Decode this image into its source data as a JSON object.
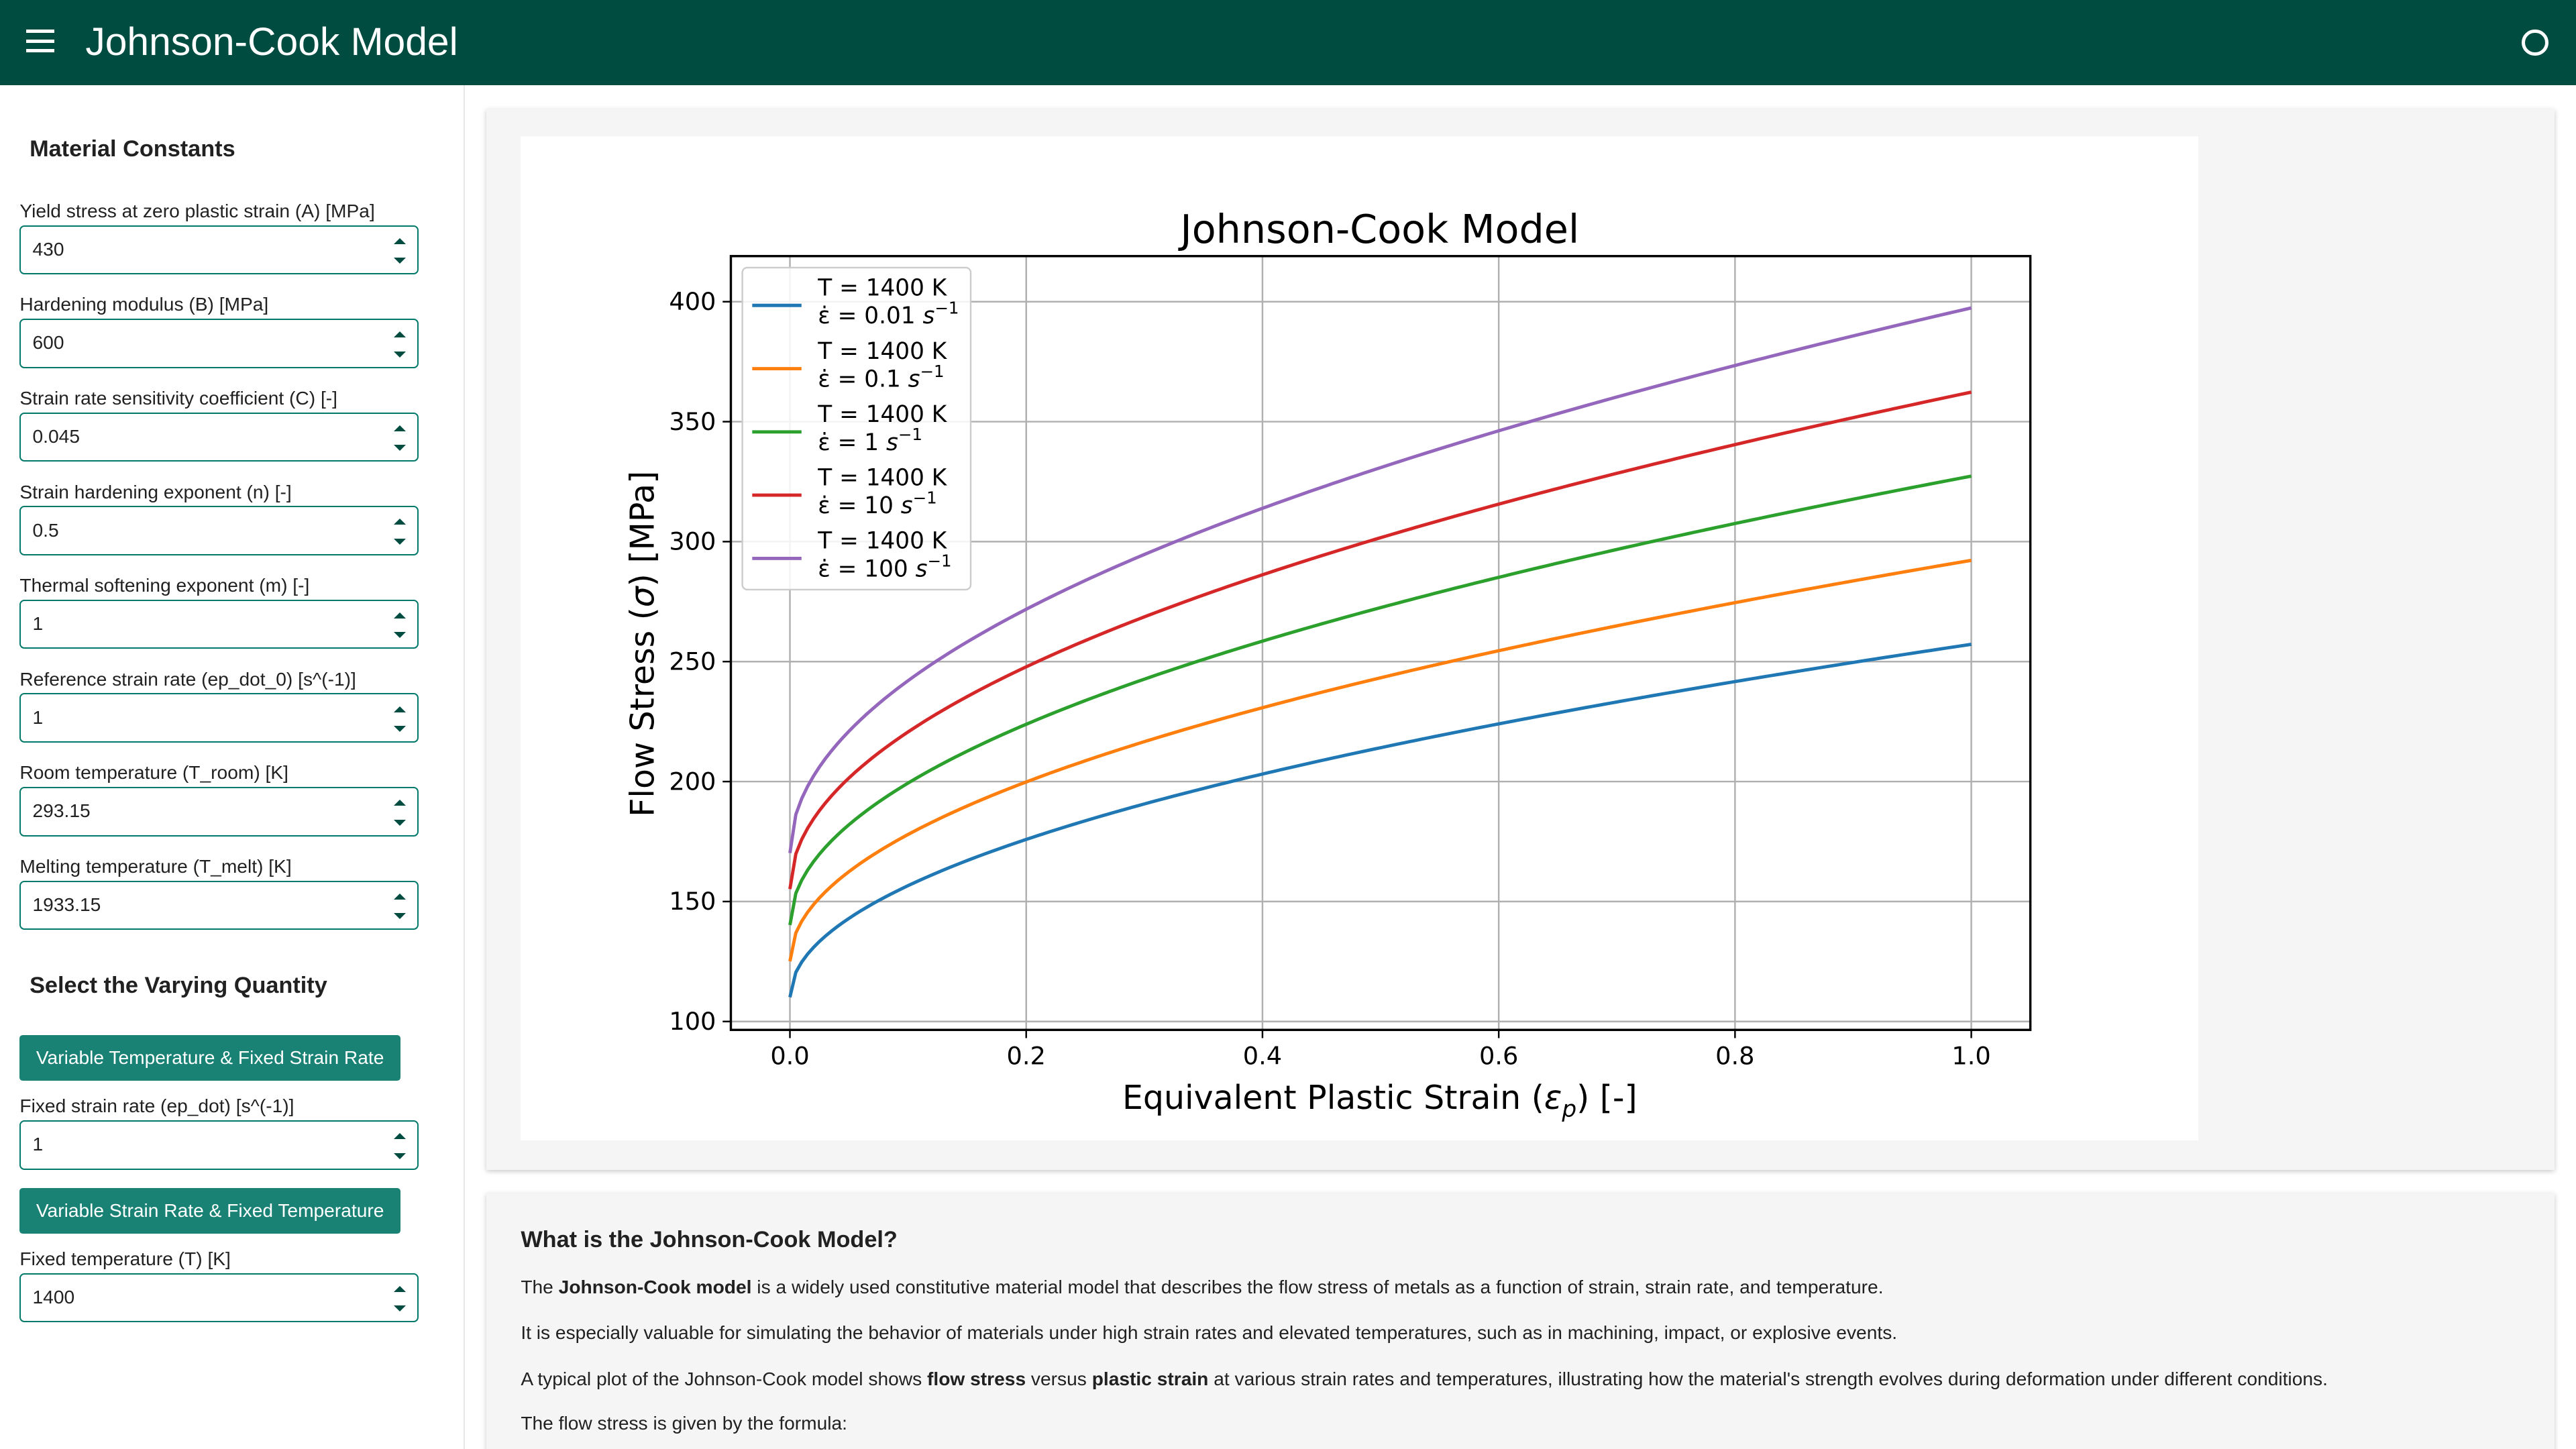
{
  "header": {
    "title": "Johnson-Cook Model",
    "menu_icon": "hamburger-menu-icon",
    "status_icon": "circle-status-icon"
  },
  "sidebar": {
    "constants_heading": "Material Constants",
    "fields": [
      {
        "label": "Yield stress at zero plastic strain (A) [MPa]",
        "value": "430"
      },
      {
        "label": "Hardening modulus (B) [MPa]",
        "value": "600"
      },
      {
        "label": "Strain rate sensitivity coefficient (C) [-]",
        "value": "0.045"
      },
      {
        "label": "Strain hardening exponent (n) [-]",
        "value": "0.5"
      },
      {
        "label": "Thermal softening exponent (m) [-]",
        "value": "1"
      },
      {
        "label": "Reference strain rate (ep_dot_0) [s^(-1)]",
        "value": "1"
      },
      {
        "label": "Room temperature (T_room) [K]",
        "value": "293.15"
      },
      {
        "label": "Melting temperature (T_melt) [K]",
        "value": "1933.15"
      }
    ],
    "varying_heading": "Select the Varying Quantity",
    "btn_temp": "Variable Temperature & Fixed Strain Rate",
    "fixed_rate": {
      "label": "Fixed strain rate (ep_dot) [s^(-1)]",
      "value": "1"
    },
    "btn_rate": "Variable Strain Rate & Fixed Temperature",
    "fixed_temp": {
      "label": "Fixed temperature (T) [K]",
      "value": "1400"
    }
  },
  "chart_data": {
    "type": "line",
    "title": "Johnson-Cook Model",
    "xlabel": "Equivalent Plastic Strain (εp) [-]",
    "ylabel": "Flow Stress (σ) [MPa]",
    "xlim": [
      -0.05,
      1.05
    ],
    "ylim": [
      96.5,
      419
    ],
    "xticks": [
      "0.0",
      "0.2",
      "0.4",
      "0.6",
      "0.8",
      "1.0"
    ],
    "yticks": [
      "100",
      "150",
      "200",
      "250",
      "300",
      "350",
      "400"
    ],
    "grid": true,
    "legend_position": "top-left",
    "x": [
      0,
      0.01,
      0.02,
      0.05,
      0.1,
      0.2,
      0.3,
      0.4,
      0.5,
      0.6,
      0.7,
      0.8,
      0.9,
      1.0
    ],
    "series": [
      {
        "name_line1": "T = 1400 K",
        "name_line2": "ε̇ = 0.01 s⁻¹",
        "color": "#1f77b4",
        "values": [
          110.1,
          125.3,
          131.6,
          144.0,
          157.5,
          176.6,
          191.2,
          203.6,
          214.5,
          224.3,
          233.4,
          241.8,
          249.7,
          257.2
        ]
      },
      {
        "name_line1": "T = 1400 K",
        "name_line2": "ε̇ = 0.1 s⁻¹",
        "color": "#ff7f0e",
        "values": [
          125.1,
          142.5,
          149.5,
          163.6,
          179.0,
          200.7,
          217.3,
          231.3,
          243.7,
          254.9,
          265.2,
          274.7,
          283.7,
          292.2
        ]
      },
      {
        "name_line1": "T = 1400 K",
        "name_line2": "ε̇ = 1 s⁻¹",
        "color": "#2ca02c",
        "values": [
          140.2,
          159.6,
          167.5,
          183.2,
          200.4,
          224.8,
          243.4,
          259.1,
          273.0,
          285.5,
          297.0,
          307.7,
          317.8,
          327.3
        ]
      },
      {
        "name_line1": "T = 1400 K",
        "name_line2": "ε̇ = 10 s⁻¹",
        "color": "#d62728",
        "values": [
          155.2,
          176.6,
          185.4,
          202.8,
          221.9,
          248.9,
          269.5,
          286.8,
          302.2,
          316.1,
          328.8,
          340.7,
          351.8,
          362.3
        ]
      },
      {
        "name_line1": "T = 1400 K",
        "name_line2": "ε̇ = 100 s⁻¹",
        "color": "#9467bd",
        "values": [
          170.2,
          193.7,
          203.3,
          222.3,
          243.3,
          272.9,
          295.5,
          314.5,
          331.4,
          346.6,
          360.6,
          373.6,
          385.8,
          397.4
        ]
      }
    ]
  },
  "info": {
    "title": "What is the Johnson-Cook Model?",
    "p1_pre": "The ",
    "p1_bold": "Johnson-Cook model",
    "p1_post": " is a widely used constitutive material model that describes the flow stress of metals as a function of strain, strain rate, and temperature.",
    "p2": "It is especially valuable for simulating the behavior of materials under high strain rates and elevated temperatures, such as in machining, impact, or explosive events.",
    "p3_a": "A typical plot of the Johnson-Cook model shows ",
    "p3_b": "flow stress",
    "p3_c": " versus ",
    "p3_d": "plastic strain",
    "p3_e": " at various strain rates and temperatures, illustrating how the material's strength evolves during deformation under different conditions.",
    "p4": "The flow stress is given by the formula:"
  }
}
